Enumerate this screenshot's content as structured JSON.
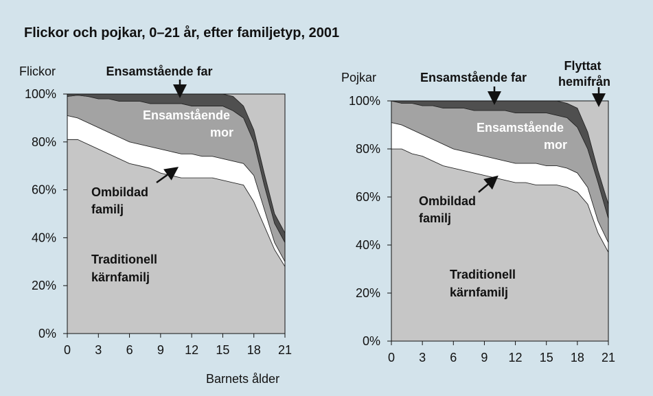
{
  "title": "Flickor och pojkar, 0–21 år, efter familjetyp, 2001",
  "chart_data": [
    {
      "type": "area",
      "ylabel": "Flickor",
      "xlabel": "Barnets ålder",
      "x": [
        0,
        1,
        2,
        3,
        4,
        5,
        6,
        7,
        8,
        9,
        10,
        11,
        12,
        13,
        14,
        15,
        16,
        17,
        18,
        19,
        20,
        21
      ],
      "xlim": [
        0,
        21
      ],
      "xticks": [
        0,
        3,
        6,
        9,
        12,
        15,
        18,
        21
      ],
      "ylim": [
        0,
        100
      ],
      "yticks": [
        {
          "value": 0,
          "label": "0%"
        },
        {
          "value": 20,
          "label": "20%"
        },
        {
          "value": 40,
          "label": "40%"
        },
        {
          "value": 60,
          "label": "60%"
        },
        {
          "value": 80,
          "label": "80%"
        },
        {
          "value": 100,
          "label": "100%"
        }
      ],
      "series": [
        {
          "name": "Traditionell kärnfamilj",
          "color": "#c6c6c6",
          "values": [
            81,
            81,
            79,
            77,
            75,
            73,
            71,
            70,
            69,
            67,
            66,
            65,
            65,
            65,
            65,
            64,
            63,
            62,
            55,
            45,
            35,
            28
          ]
        },
        {
          "name": "Ombildad familj",
          "color": "#ffffff",
          "values": [
            10,
            9,
            9,
            9,
            9,
            9,
            9,
            9,
            9,
            10,
            10,
            10,
            10,
            9,
            9,
            9,
            9,
            9,
            11,
            7,
            3,
            2
          ]
        },
        {
          "name": "Ensamstående mor",
          "color": "#a3a3a3",
          "values": [
            8,
            9.5,
            11,
            12,
            14,
            15,
            17,
            18,
            18,
            19,
            20,
            21,
            20,
            21,
            21,
            22,
            21,
            19,
            14,
            10,
            8,
            8
          ]
        },
        {
          "name": "Ensamstående far",
          "color": "#4f4f4f",
          "values": [
            1,
            0.5,
            1,
            2,
            2,
            3,
            3,
            3,
            4,
            4,
            4,
            4,
            5,
            5,
            5,
            5,
            6,
            5,
            5,
            5,
            4,
            4
          ]
        },
        {
          "color": "#c6c6c6",
          "values": [
            0,
            0,
            0,
            0,
            0,
            0,
            0,
            0,
            0,
            0,
            0,
            0,
            0,
            0,
            0,
            0,
            1,
            5,
            15,
            33,
            50,
            58
          ]
        }
      ]
    },
    {
      "type": "area",
      "ylabel": "Pojkar",
      "x": [
        0,
        1,
        2,
        3,
        4,
        5,
        6,
        7,
        8,
        9,
        10,
        11,
        12,
        13,
        14,
        15,
        16,
        17,
        18,
        19,
        20,
        21
      ],
      "xlim": [
        0,
        21
      ],
      "xticks": [
        0,
        3,
        6,
        9,
        12,
        15,
        18,
        21
      ],
      "ylim": [
        0,
        100
      ],
      "yticks": [
        {
          "value": 0,
          "label": "0%"
        },
        {
          "value": 20,
          "label": "20%"
        },
        {
          "value": 40,
          "label": "40%"
        },
        {
          "value": 60,
          "label": "60%"
        },
        {
          "value": 80,
          "label": "80%"
        },
        {
          "value": 100,
          "label": "100%"
        }
      ],
      "series": [
        {
          "name": "Traditionell kärnfamilj",
          "color": "#c6c6c6",
          "values": [
            80,
            80,
            78,
            77,
            75,
            73,
            72,
            71,
            70,
            69,
            68,
            67,
            66,
            66,
            65,
            65,
            65,
            64,
            62,
            57,
            45,
            37
          ]
        },
        {
          "name": "Ombildad familj",
          "color": "#ffffff",
          "values": [
            11,
            10,
            10,
            9,
            9,
            9,
            8,
            8,
            8,
            8,
            8,
            8,
            8,
            8,
            9,
            8,
            8,
            8,
            8,
            7,
            5,
            4
          ]
        },
        {
          "name": "Ensamstående mor",
          "color": "#a3a3a3",
          "values": [
            9,
            9,
            11,
            12,
            14,
            15,
            17,
            18,
            18,
            19,
            20,
            21,
            21,
            21,
            21,
            22,
            21,
            21,
            19,
            16,
            16,
            10
          ]
        },
        {
          "name": "Ensamstående far",
          "color": "#4f4f4f",
          "values": [
            0,
            1,
            1,
            2,
            2,
            3,
            3,
            3,
            4,
            4,
            4,
            4,
            5,
            5,
            5,
            5,
            6,
            6,
            8,
            7,
            5,
            6
          ]
        },
        {
          "name": "Flyttat hemifrån",
          "color": "#c6c6c6",
          "values": [
            0,
            0,
            0,
            0,
            0,
            0,
            0,
            0,
            0,
            0,
            0,
            0,
            0,
            0,
            0,
            0,
            0,
            1,
            3,
            13,
            29,
            43
          ]
        }
      ]
    }
  ]
}
